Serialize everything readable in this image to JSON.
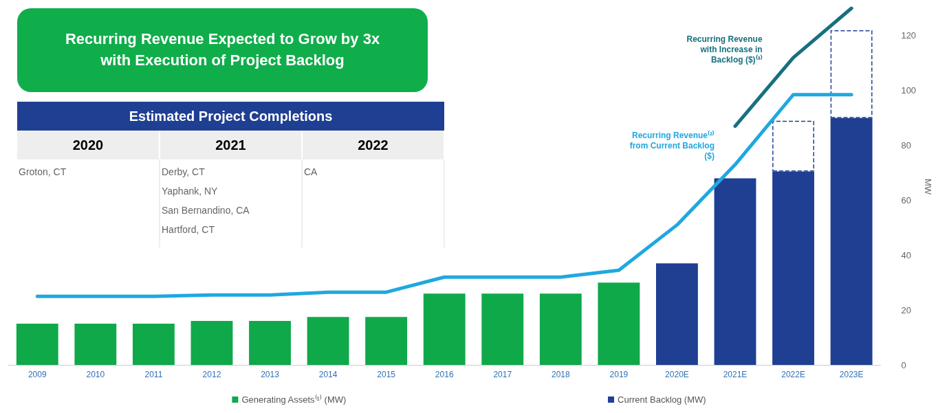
{
  "chart_data": [
    {
      "type": "bar",
      "title": "Recurring Revenue Expected to Grow by 3x with Execution of Project Backlog",
      "categories": [
        "2009",
        "2010",
        "2011",
        "2012",
        "2013",
        "2014",
        "2015",
        "2016",
        "2017",
        "2018",
        "2019",
        "2020E",
        "2021E",
        "2022E",
        "2023E"
      ],
      "stacked": true,
      "ylabel": "MW",
      "ylim": [
        0,
        130
      ],
      "yticks": [
        0,
        20,
        40,
        60,
        80,
        100,
        120
      ],
      "legend": "bottom",
      "series": [
        {
          "name": "Generating Assets⁽¹⁾ (MW)",
          "color": "#0fa94a",
          "values": [
            15,
            15,
            15,
            16,
            16,
            17.5,
            17.5,
            26,
            26,
            26,
            30,
            null,
            null,
            null,
            null
          ]
        },
        {
          "name": "Current Backlog (MW)",
          "color": "#1f3f93",
          "values": [
            null,
            null,
            null,
            null,
            null,
            null,
            null,
            null,
            null,
            null,
            null,
            37,
            68,
            70.5,
            90
          ]
        },
        {
          "color": "#1f3f93",
          "line_style": "dashed",
          "values": [
            null,
            null,
            null,
            null,
            null,
            null,
            null,
            null,
            null,
            null,
            null,
            null,
            null,
            18.5,
            32
          ]
        },
        {
          "type": "line",
          "name": "Recurring Revenue⁽²⁾ from Current Backlog ($)",
          "color": "#1fa8e0",
          "values": [
            25,
            25,
            25,
            25.5,
            25.5,
            26.5,
            26.5,
            32,
            32,
            32,
            34.5,
            51,
            73,
            98.5,
            98.5
          ]
        },
        {
          "type": "line",
          "name": "Recurring Revenue with Increase in Backlog ($)⁽³⁾",
          "color": "#17707e",
          "values": [
            null,
            null,
            null,
            null,
            null,
            null,
            null,
            null,
            null,
            null,
            null,
            null,
            87,
            112,
            130
          ]
        }
      ]
    },
    {
      "type": "other",
      "title": "Estimated Project Completions",
      "categories": [
        "2020",
        "2021",
        "2022"
      ],
      "annotations": [
        "Groton, CT",
        "Derby, CT\nYaphank, NY\nSan Bernandino, CA\nHartford, CT",
        "CA"
      ]
    }
  ]
}
